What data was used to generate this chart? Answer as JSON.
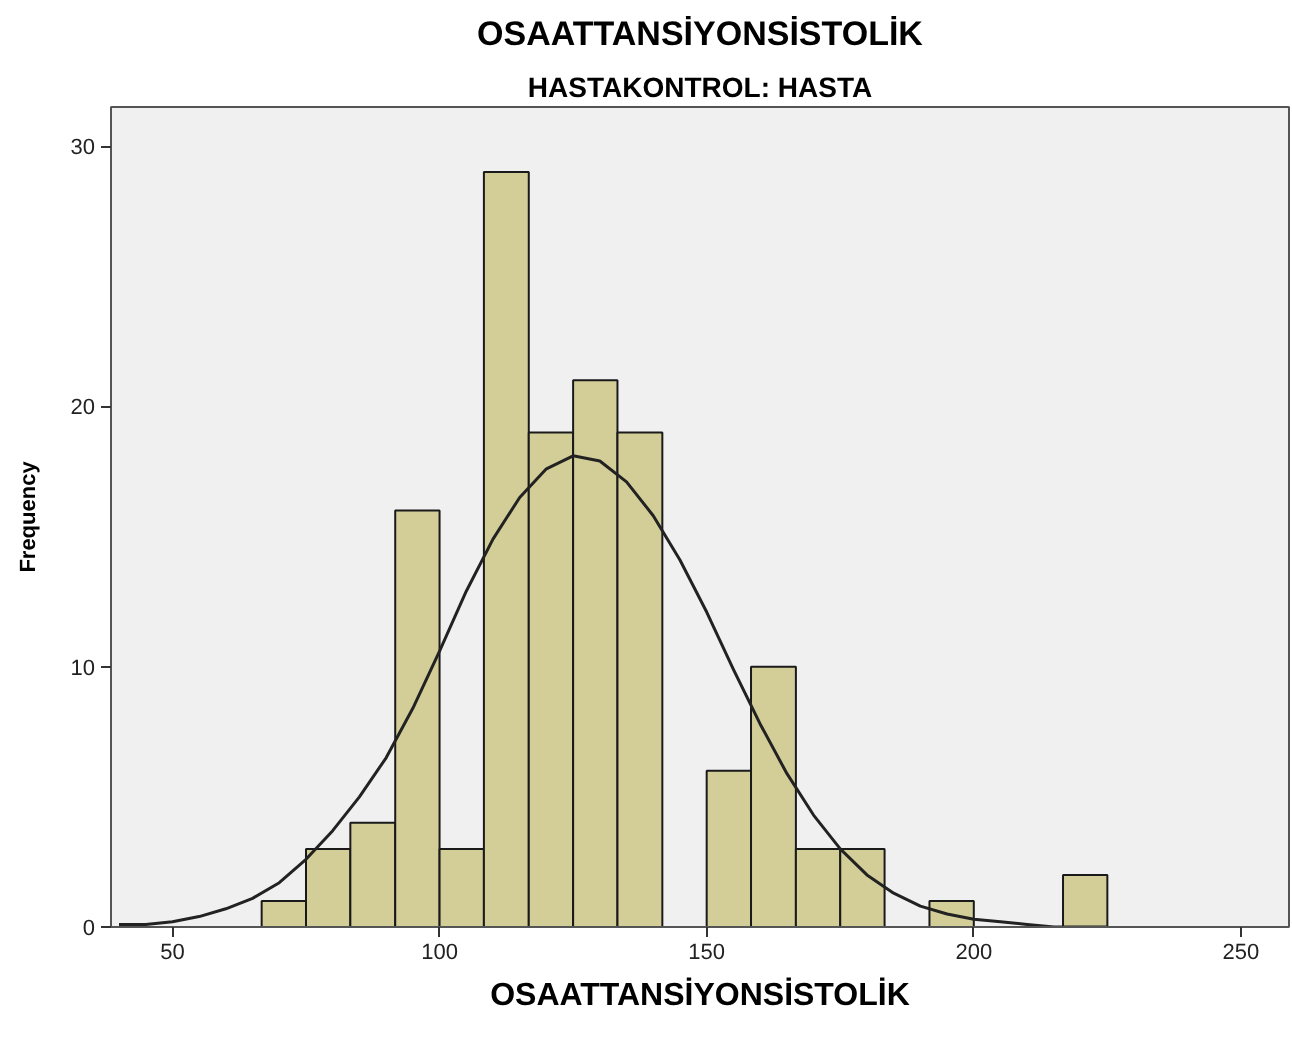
{
  "chart_data": {
    "type": "histogram",
    "title": "OSAATTANSİYONSİSTOLİK",
    "subtitle": "HASTAKONTROL: HASTA",
    "xlabel": "OSAATTANSİYONSİSTOLİK",
    "ylabel": "Frequency",
    "bins": [
      66.7,
      75,
      83.3,
      91.7,
      100,
      108.3,
      116.7,
      125,
      133.3,
      141.7,
      150,
      158.3,
      166.7,
      175,
      183.3,
      191.7,
      200,
      216.7,
      225
    ],
    "series": [
      {
        "color": "#d3ce98",
        "values": [
          1,
          3,
          4,
          16,
          3,
          29,
          19,
          21,
          19,
          0,
          6,
          10,
          3,
          3,
          0,
          1,
          0,
          2
        ]
      },
      {
        "type": "line",
        "color": "#222222",
        "x": [
          40,
          45,
          50,
          55,
          60,
          65,
          70,
          75,
          80,
          85,
          90,
          95,
          100,
          105,
          110,
          115,
          120,
          125,
          130,
          135,
          140,
          145,
          150,
          155,
          160,
          165,
          170,
          175,
          180,
          185,
          190,
          195,
          200,
          205,
          210,
          215,
          220,
          225
        ],
        "values": [
          0.1,
          0.1,
          0.2,
          0.4,
          0.7,
          1.1,
          1.7,
          2.6,
          3.7,
          5.0,
          6.5,
          8.4,
          10.6,
          12.9,
          14.9,
          16.5,
          17.6,
          18.1,
          17.9,
          17.1,
          15.8,
          14.1,
          12.1,
          9.9,
          7.8,
          5.9,
          4.3,
          3.0,
          2.0,
          1.3,
          0.8,
          0.5,
          0.3,
          0.2,
          0.1,
          0.0,
          0.0,
          0.0
        ]
      }
    ],
    "xlim": [
      38.5,
      259
    ],
    "ylim": [
      0,
      31.5
    ],
    "xticks": [
      50,
      100,
      150,
      200,
      250
    ],
    "yticks": [
      0,
      10,
      20,
      30
    ]
  }
}
